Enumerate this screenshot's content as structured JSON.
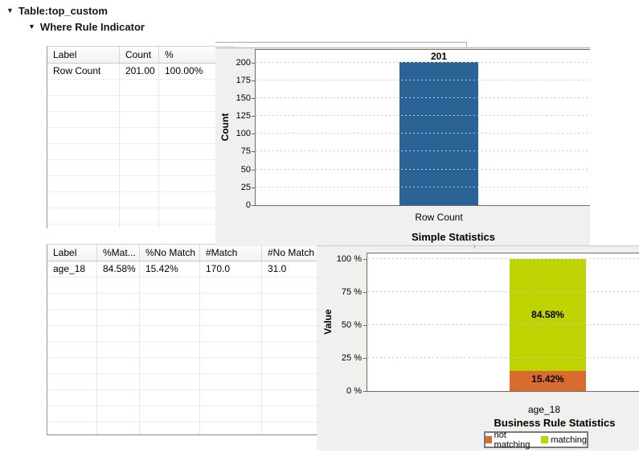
{
  "tree": {
    "table_item": "Table:top_custom",
    "rule_item": "Where Rule Indicator"
  },
  "tables": {
    "simple_statistics": {
      "columns": [
        "Label",
        "Count",
        "%"
      ],
      "rows": [
        [
          "Row Count",
          "201.00",
          "100.00%"
        ]
      ],
      "empty_rows": 10
    },
    "business_rule": {
      "columns": [
        "Label",
        "%Mat...",
        "%No Match",
        "#Match",
        "#No Match"
      ],
      "rows": [
        [
          "age_18",
          "84.58%",
          "15.42%",
          "170.0",
          "31.0"
        ]
      ],
      "empty_rows": 10
    }
  },
  "chart_data": [
    {
      "type": "bar",
      "title": "Simple Statistics",
      "ylabel": "Count",
      "categories": [
        "Row Count"
      ],
      "values": [
        201
      ],
      "value_labels": [
        "201"
      ],
      "ylim": [
        0,
        200
      ],
      "yticks": [
        0,
        25,
        50,
        75,
        100,
        125,
        150,
        175,
        200
      ],
      "grid": "dotted-horizontal",
      "legend_position": "none",
      "bar_color": "#2a6496"
    },
    {
      "type": "stacked-bar",
      "title": "Business Rule Statistics",
      "ylabel": "Value",
      "categories": [
        "age_18"
      ],
      "series": [
        {
          "name": "not matching",
          "values": [
            15.42
          ],
          "label": "15.42%",
          "color": "#d96b2f"
        },
        {
          "name": "matching",
          "values": [
            84.58
          ],
          "label": "84.58%",
          "color": "#bfd202"
        }
      ],
      "ylim": [
        0,
        100
      ],
      "yticks": [
        "0 %",
        "25 %",
        "50 %",
        "75 %",
        "100 %"
      ],
      "grid": "dotted-horizontal",
      "legend_position": "bottom"
    }
  ],
  "colors": {
    "panel_bg": "#f0f0ee",
    "bar_blue": "#2a6496",
    "matching_green": "#bfd202",
    "not_matching_orange": "#d96b2f"
  }
}
